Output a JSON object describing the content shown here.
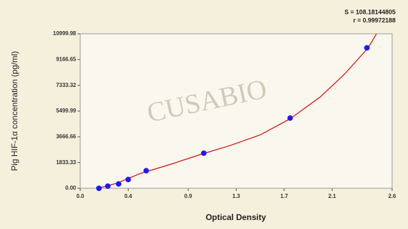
{
  "chart_data": {
    "type": "scatter",
    "xlabel": "Optical Density",
    "ylabel": "Pig HIF-1α concentration (pg/ml)",
    "annotations": [
      "S = 108.18144805",
      "r = 0.99972188"
    ],
    "watermark": "CUSABIO",
    "xlim": [
      0,
      2.6
    ],
    "ylim": [
      0,
      10999.98
    ],
    "xticks": [
      {
        "value": 0,
        "label": "0.0"
      },
      0.4,
      0.9,
      1.3,
      1.7,
      2.1,
      2.6
    ],
    "yticks": [
      {
        "value": 0,
        "label": "0.00"
      },
      1833.33,
      3666.66,
      5499.99,
      7333.32,
      9166.65,
      10999.98
    ],
    "points": {
      "color": "#1a1aff",
      "x": [
        0.156,
        0.23,
        0.32,
        0.4,
        0.55,
        1.03,
        1.75,
        2.39
      ],
      "values": [
        0,
        156,
        312,
        625,
        1250,
        2500,
        5000,
        10000
      ]
    },
    "fit": {
      "color": "#e00000",
      "x": [
        0.15,
        0.3,
        0.5,
        0.75,
        1.0,
        1.25,
        1.5,
        1.75,
        2.0,
        2.2,
        2.4,
        2.47
      ],
      "values": [
        0,
        350,
        1050,
        1700,
        2400,
        3050,
        3800,
        4950,
        6500,
        8100,
        10000,
        10999.98
      ]
    }
  }
}
